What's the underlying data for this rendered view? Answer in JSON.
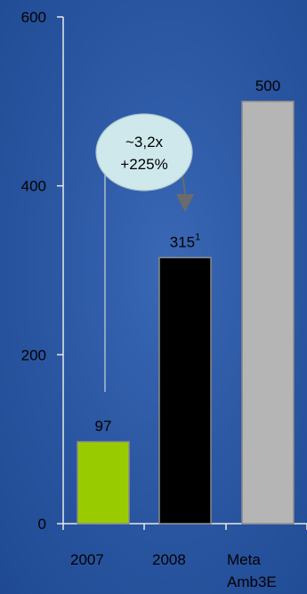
{
  "chart_data": {
    "type": "bar",
    "categories": [
      "2007",
      "2008",
      "Meta\nAmb3E"
    ],
    "values": [
      97,
      315,
      500
    ],
    "value_labels": [
      "97",
      "315",
      "500"
    ],
    "value_superscripts": [
      "",
      "1",
      ""
    ],
    "colors": [
      "#99cc00",
      "#000000",
      "#b5b5b5"
    ],
    "ylim": [
      0,
      600
    ],
    "yticks": [
      0,
      200,
      400,
      600
    ],
    "title": "",
    "xlabel": "",
    "ylabel": "",
    "grid": false,
    "callout": {
      "line1": "~3,2x",
      "line2": "+225%",
      "from_category": "2007",
      "to_category": "2008",
      "fill": "#cfe8ec"
    }
  },
  "colors": {
    "background": "#2c58a4",
    "axis": "#e8e8e8",
    "arrow": "#6b6b6b",
    "text": "#000000"
  }
}
